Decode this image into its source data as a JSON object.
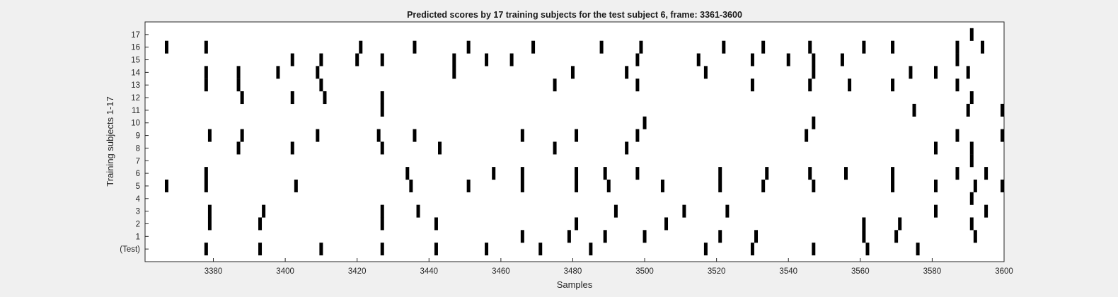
{
  "chart_data": {
    "type": "raster",
    "title": "Predicted scores by 17 training subjects for the test subject 6, frame: 3361-3600",
    "xlabel": "Samples",
    "ylabel": "Training subjects 1-17",
    "xlim": [
      3361,
      3600
    ],
    "xticks": [
      3380,
      3400,
      3420,
      3440,
      3460,
      3480,
      3500,
      3520,
      3540,
      3560,
      3580,
      3600
    ],
    "xtick_labels": [
      "3380",
      "3400",
      "3420",
      "3440",
      "3460",
      "3480",
      "3500",
      "3520",
      "3540",
      "3560",
      "3580",
      "3600"
    ],
    "row_labels": [
      "(Test)",
      "1",
      "2",
      "3",
      "4",
      "5",
      "6",
      "7",
      "8",
      "9",
      "10",
      "11",
      "12",
      "13",
      "14",
      "15",
      "16",
      "17"
    ],
    "rows": [
      {
        "label": "(Test)",
        "spikes": [
          3378,
          3393,
          3410,
          3427,
          3442,
          3456,
          3471,
          3485,
          3517,
          3530,
          3547,
          3562,
          3576
        ]
      },
      {
        "label": "1",
        "spikes": [
          3466,
          3479,
          3489,
          3500,
          3521,
          3531,
          3561,
          3570,
          3592
        ]
      },
      {
        "label": "2",
        "spikes": [
          3379,
          3393,
          3427,
          3442,
          3481,
          3506,
          3561,
          3571,
          3591
        ]
      },
      {
        "label": "3",
        "spikes": [
          3379,
          3394,
          3427,
          3437,
          3492,
          3511,
          3523,
          3581,
          3595
        ]
      },
      {
        "label": "4",
        "spikes": [
          3591
        ]
      },
      {
        "label": "5",
        "spikes": [
          3367,
          3378,
          3403,
          3435,
          3451,
          3466,
          3481,
          3490,
          3505,
          3521,
          3533,
          3547,
          3569,
          3581,
          3592,
          3600
        ]
      },
      {
        "label": "6",
        "spikes": [
          3378,
          3434,
          3458,
          3466,
          3481,
          3489,
          3498,
          3521,
          3534,
          3546,
          3556,
          3569,
          3587,
          3595
        ]
      },
      {
        "label": "7",
        "spikes": [
          3591
        ]
      },
      {
        "label": "8",
        "spikes": [
          3387,
          3402,
          3427,
          3443,
          3475,
          3495,
          3581,
          3591
        ]
      },
      {
        "label": "9",
        "spikes": [
          3379,
          3388,
          3409,
          3426,
          3436,
          3466,
          3481,
          3498,
          3545,
          3587,
          3600
        ]
      },
      {
        "label": "10",
        "spikes": [
          3500,
          3547
        ]
      },
      {
        "label": "11",
        "spikes": [
          3427,
          3575,
          3590,
          3600
        ]
      },
      {
        "label": "12",
        "spikes": [
          3388,
          3402,
          3411,
          3427,
          3591
        ]
      },
      {
        "label": "13",
        "spikes": [
          3378,
          3387,
          3410,
          3475,
          3498,
          3530,
          3546,
          3557,
          3569,
          3587
        ]
      },
      {
        "label": "14",
        "spikes": [
          3378,
          3387,
          3398,
          3409,
          3447,
          3480,
          3495,
          3517,
          3547,
          3574,
          3581,
          3590
        ]
      },
      {
        "label": "15",
        "spikes": [
          3402,
          3410,
          3420,
          3427,
          3447,
          3456,
          3463,
          3498,
          3515,
          3530,
          3540,
          3547,
          3555,
          3587
        ]
      },
      {
        "label": "16",
        "spikes": [
          3367,
          3378,
          3421,
          3436,
          3451,
          3469,
          3488,
          3499,
          3522,
          3533,
          3546,
          3561,
          3569,
          3587,
          3594
        ]
      },
      {
        "label": "17",
        "spikes": [
          3591
        ]
      }
    ],
    "grid": false,
    "legend": "none",
    "colors": {
      "spike": "#000000",
      "axes_bg": "#ffffff",
      "figure_bg": "#f0f0f0",
      "axis_line": "#262626"
    }
  }
}
